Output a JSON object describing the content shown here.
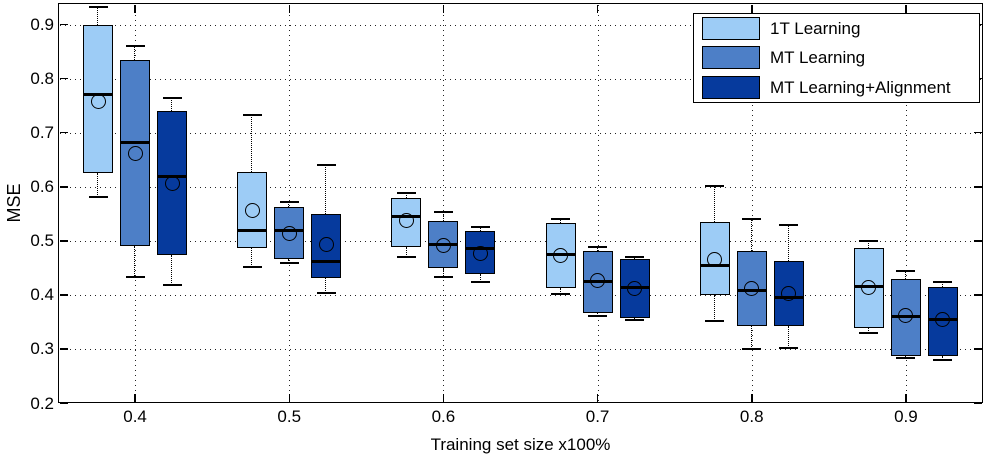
{
  "chart_data": {
    "type": "box",
    "title": "",
    "xlabel": "Training set size x100%",
    "ylabel": "MSE",
    "x_tick_labels": [
      "0.4",
      "0.5",
      "0.6",
      "0.7",
      "0.8",
      "0.9"
    ],
    "y_tick_labels": [
      "0.2",
      "0.3",
      "0.4",
      "0.5",
      "0.6",
      "0.7",
      "0.8",
      "0.9"
    ],
    "y_tick_values": [
      0.2,
      0.3,
      0.4,
      0.5,
      0.6,
      0.7,
      0.8,
      0.9
    ],
    "ylim": [
      0.2,
      0.94
    ],
    "grid": {
      "style": "dotted",
      "color": "#222222",
      "x": true,
      "y": true
    },
    "legend": {
      "position": "top-right",
      "entries": [
        "1T Learning",
        "MT Learning",
        "MT Learning+Alignment"
      ]
    },
    "series": [
      {
        "name": "1T Learning",
        "color": "#9DCCF6",
        "boxes": [
          {
            "whisker_low": 0.582,
            "q1": 0.625,
            "median": 0.77,
            "mean": 0.758,
            "q3": 0.9,
            "whisker_high": 0.932
          },
          {
            "whisker_low": 0.451,
            "q1": 0.486,
            "median": 0.52,
            "mean": 0.557,
            "q3": 0.627,
            "whisker_high": 0.733
          },
          {
            "whisker_low": 0.47,
            "q1": 0.489,
            "median": 0.545,
            "mean": 0.537,
            "q3": 0.58,
            "whisker_high": 0.588
          },
          {
            "whisker_low": 0.402,
            "q1": 0.412,
            "median": 0.474,
            "mean": 0.472,
            "q3": 0.533,
            "whisker_high": 0.54
          },
          {
            "whisker_low": 0.351,
            "q1": 0.4,
            "median": 0.455,
            "mean": 0.466,
            "q3": 0.534,
            "whisker_high": 0.602
          },
          {
            "whisker_low": 0.329,
            "q1": 0.338,
            "median": 0.415,
            "mean": 0.414,
            "q3": 0.486,
            "whisker_high": 0.5
          }
        ]
      },
      {
        "name": "MT Learning",
        "color": "#4D7FC7",
        "boxes": [
          {
            "whisker_low": 0.434,
            "q1": 0.491,
            "median": 0.682,
            "mean": 0.661,
            "q3": 0.834,
            "whisker_high": 0.86
          },
          {
            "whisker_low": 0.459,
            "q1": 0.466,
            "median": 0.519,
            "mean": 0.514,
            "q3": 0.562,
            "whisker_high": 0.571
          },
          {
            "whisker_low": 0.434,
            "q1": 0.449,
            "median": 0.494,
            "mean": 0.491,
            "q3": 0.536,
            "whisker_high": 0.554
          },
          {
            "whisker_low": 0.361,
            "q1": 0.366,
            "median": 0.425,
            "mean": 0.426,
            "q3": 0.481,
            "whisker_high": 0.489
          },
          {
            "whisker_low": 0.299,
            "q1": 0.343,
            "median": 0.409,
            "mean": 0.412,
            "q3": 0.481,
            "whisker_high": 0.54
          },
          {
            "whisker_low": 0.283,
            "q1": 0.287,
            "median": 0.36,
            "mean": 0.361,
            "q3": 0.429,
            "whisker_high": 0.445
          }
        ]
      },
      {
        "name": "MT Learning+Alignment",
        "color": "#063A9D",
        "boxes": [
          {
            "whisker_low": 0.419,
            "q1": 0.474,
            "median": 0.619,
            "mean": 0.607,
            "q3": 0.74,
            "whisker_high": 0.765
          },
          {
            "whisker_low": 0.403,
            "q1": 0.432,
            "median": 0.462,
            "mean": 0.493,
            "q3": 0.55,
            "whisker_high": 0.641
          },
          {
            "whisker_low": 0.423,
            "q1": 0.438,
            "median": 0.485,
            "mean": 0.477,
            "q3": 0.519,
            "whisker_high": 0.525
          },
          {
            "whisker_low": 0.354,
            "q1": 0.357,
            "median": 0.413,
            "mean": 0.412,
            "q3": 0.466,
            "whisker_high": 0.471
          },
          {
            "whisker_low": 0.301,
            "q1": 0.343,
            "median": 0.396,
            "mean": 0.403,
            "q3": 0.463,
            "whisker_high": 0.53
          },
          {
            "whisker_low": 0.28,
            "q1": 0.287,
            "median": 0.355,
            "mean": 0.354,
            "q3": 0.414,
            "whisker_high": 0.423
          }
        ]
      }
    ]
  }
}
